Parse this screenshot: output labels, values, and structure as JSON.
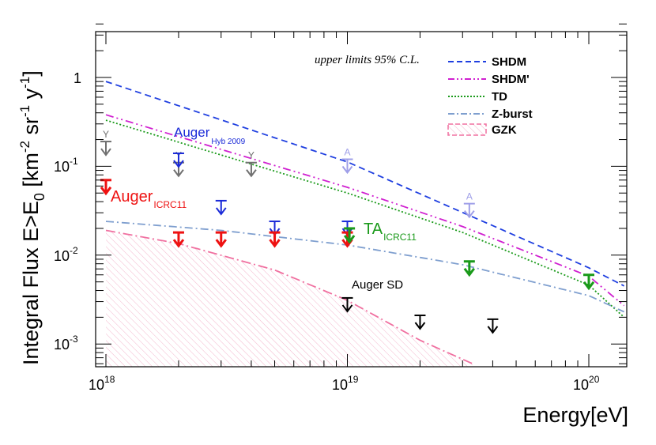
{
  "chart_data": {
    "type": "line",
    "xscale": "log",
    "yscale": "log",
    "xlim": [
      9e+17,
      1.4e+20
    ],
    "ylim": [
      0.0006,
      4.0
    ],
    "xlabel": "Energy[eV]",
    "ylabel": {
      "main": "Integral Flux E>E",
      "sub": "0",
      "units_pre": " [km",
      "sup1": "-2",
      "units_mid": " sr",
      "sup2": "-1",
      "units_y": " y",
      "sup3": "-1",
      "units_end": "]"
    },
    "x_ticks": [
      {
        "value": 1e+18,
        "base": "10",
        "exp": "18"
      },
      {
        "value": 1e+19,
        "base": "10",
        "exp": "19"
      },
      {
        "value": 1e+20,
        "base": "10",
        "exp": "20"
      }
    ],
    "y_ticks": [
      {
        "value": 0.001,
        "base": "10",
        "exp": "-3"
      },
      {
        "value": 0.01,
        "base": "10",
        "exp": "-2"
      },
      {
        "value": 0.1,
        "base": "10",
        "exp": "-1"
      },
      {
        "value": 1,
        "base": "1",
        "exp": ""
      }
    ],
    "annotation": "upper limits 95% C.L.",
    "series": [
      {
        "name": "SHDM",
        "color": "#1f3fe0",
        "style": "dashed",
        "x": [
          1e+18,
          1e+19,
          1e+20,
          1.4e+20
        ],
        "y": [
          0.9,
          0.112,
          0.0072,
          0.0045
        ]
      },
      {
        "name": "SHDM'",
        "color": "#d020d0",
        "style": "dashdotdot",
        "x": [
          1e+18,
          1e+19,
          3e+19,
          1e+20,
          1.4e+20
        ],
        "y": [
          0.38,
          0.058,
          0.021,
          0.0058,
          0.0027
        ]
      },
      {
        "name": "TD",
        "color": "#1a9a1a",
        "style": "dotted",
        "x": [
          1e+18,
          1e+19,
          3e+19,
          1e+20,
          1.4e+20
        ],
        "y": [
          0.33,
          0.05,
          0.018,
          0.0046,
          0.002
        ]
      },
      {
        "name": "Z-burst",
        "color": "#7f9fcf",
        "style": "dashdot",
        "x": [
          1e+18,
          3e+18,
          1e+19,
          3e+19,
          1e+20,
          1.4e+20
        ],
        "y": [
          0.024,
          0.019,
          0.013,
          0.0078,
          0.0035,
          0.0023
        ]
      },
      {
        "name": "GZK",
        "color": "#f070a0",
        "style": "dashdot-hatched",
        "x": [
          1e+18,
          2e+18,
          5e+18,
          1e+19,
          2e+19,
          3.3e+19
        ],
        "y": [
          0.019,
          0.0135,
          0.0068,
          0.0031,
          0.0011,
          0.0006
        ]
      }
    ],
    "limits": [
      {
        "group": "Y",
        "label": "Y",
        "color": "#707070",
        "points": [
          [
            1e+18,
            0.19
          ],
          [
            2e+18,
            0.11
          ],
          [
            4e+18,
            0.11
          ]
        ]
      },
      {
        "group": "A",
        "label": "A",
        "color": "#9f9fe8",
        "points": [
          [
            1e+19,
            0.12
          ],
          [
            3.2e+19,
            0.038
          ]
        ]
      },
      {
        "group": "Auger Hyb 2009",
        "color": "#1a2ad8",
        "points": [
          [
            2e+18,
            0.14
          ],
          [
            3e+18,
            0.041
          ],
          [
            5e+18,
            0.024
          ],
          [
            1e+19,
            0.024
          ]
        ]
      },
      {
        "group": "Auger ICRC11",
        "color": "#ee1111",
        "points": [
          [
            1e+18,
            0.07
          ],
          [
            2e+18,
            0.018
          ],
          [
            3e+18,
            0.018
          ],
          [
            5e+18,
            0.018
          ],
          [
            1e+19,
            0.018
          ]
        ]
      },
      {
        "group": "TA ICRC11",
        "color": "#1a9a1a",
        "points": [
          [
            1.02e+19,
            0.02
          ],
          [
            3.2e+19,
            0.0085
          ],
          [
            1e+20,
            0.006
          ]
        ]
      },
      {
        "group": "Auger SD",
        "color": "#000000",
        "points": [
          [
            1e+19,
            0.0033
          ],
          [
            2e+19,
            0.0021
          ],
          [
            4e+19,
            0.0019
          ]
        ]
      }
    ],
    "labels": {
      "auger_hyb": {
        "main": "Auger",
        "sub": "Hyb 2009"
      },
      "auger_icrc": {
        "main": "Auger",
        "sub": "ICRC11"
      },
      "ta_icrc": {
        "main": "TA",
        "sub": "ICRC11"
      },
      "auger_sd": "Auger SD"
    },
    "colors": {
      "auger_hyb": "#1a2ad8",
      "auger_icrc": "#ee1111",
      "ta": "#1a9a1a",
      "y": "#707070",
      "a": "#9f9fe8"
    }
  }
}
